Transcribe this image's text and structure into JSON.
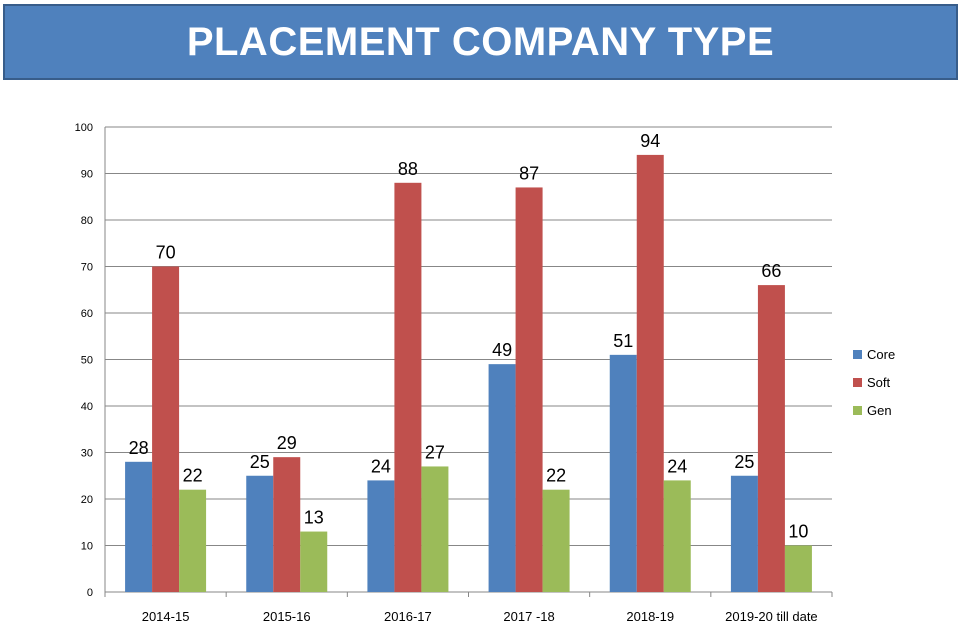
{
  "title": "PLACEMENT COMPANY TYPE",
  "chart_data": {
    "type": "bar",
    "title": "PLACEMENT COMPANY TYPE",
    "categories": [
      "2014-15",
      "2015-16",
      "2016-17",
      "2017 -18",
      "2018-19",
      "2019-20 till date"
    ],
    "series": [
      {
        "name": "Core",
        "color": "#4f81bd",
        "values": [
          28,
          25,
          24,
          49,
          51,
          25
        ]
      },
      {
        "name": "Soft",
        "color": "#c0504d",
        "values": [
          70,
          29,
          88,
          87,
          94,
          66
        ]
      },
      {
        "name": "Gen",
        "color": "#9bbb59",
        "values": [
          22,
          13,
          27,
          22,
          24,
          10
        ]
      }
    ],
    "yticks": [
      "0",
      "10",
      "20",
      "30",
      "40",
      "50",
      "60",
      "70",
      "80",
      "90",
      "100"
    ],
    "ylim": [
      0,
      100
    ],
    "grid": true,
    "legend_position": "right"
  }
}
